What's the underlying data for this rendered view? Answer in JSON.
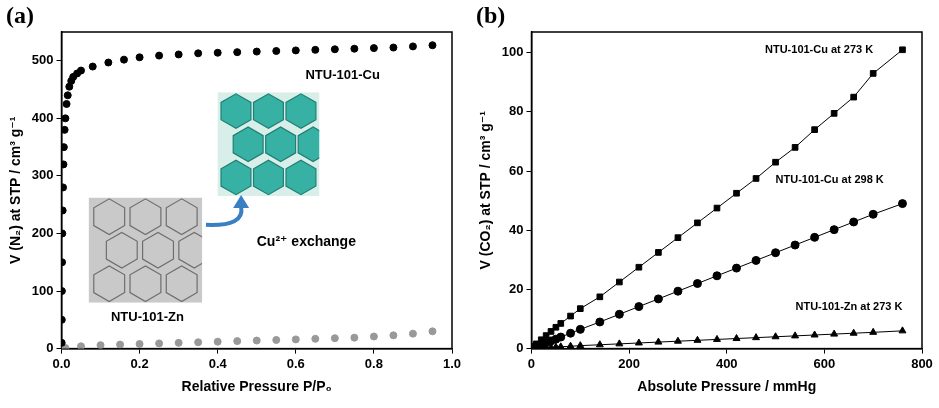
{
  "chart_data": [
    {
      "type": "scatter",
      "title": "(a)",
      "x_label": "Relative Pressure P/P₀",
      "y_label": "V (N₂) at STP / cm³ g⁻¹",
      "xlim": [
        0,
        1.0
      ],
      "xticks": [
        {
          "value": 0,
          "label": "0.0"
        },
        0.2,
        0.4,
        0.6,
        0.8,
        {
          "value": 1,
          "label": "1.0"
        }
      ],
      "ylim": [
        0,
        550
      ],
      "yticks": [
        0,
        100,
        200,
        300,
        400,
        500
      ],
      "grid": false,
      "annotations": [
        "Cu²⁺ exchange"
      ],
      "series": [
        {
          "name": "NTU-101-Cu",
          "color": "#000000",
          "marker": "circle",
          "line_style": "none",
          "x": [
            0.0005,
            0.0008,
            0.001,
            0.0015,
            0.002,
            0.003,
            0.004,
            0.005,
            0.006,
            0.008,
            0.01,
            0.013,
            0.016,
            0.02,
            0.025,
            0.03,
            0.04,
            0.05,
            0.08,
            0.12,
            0.16,
            0.2,
            0.25,
            0.3,
            0.35,
            0.4,
            0.45,
            0.5,
            0.55,
            0.6,
            0.65,
            0.7,
            0.75,
            0.8,
            0.85,
            0.9,
            0.95
          ],
          "values": [
            10,
            50,
            100,
            150,
            200,
            240,
            280,
            320,
            350,
            380,
            400,
            425,
            440,
            455,
            465,
            472,
            478,
            483,
            490,
            497,
            502,
            506,
            509,
            511,
            513,
            514,
            515,
            516,
            517,
            518,
            519,
            520,
            521,
            522,
            523,
            525,
            527
          ]
        },
        {
          "name": "NTU-101-Zn",
          "color": "#999999",
          "marker": "circle",
          "line_style": "none",
          "x": [
            0.01,
            0.05,
            0.1,
            0.15,
            0.2,
            0.25,
            0.3,
            0.35,
            0.4,
            0.45,
            0.5,
            0.55,
            0.6,
            0.65,
            0.7,
            0.75,
            0.8,
            0.85,
            0.9,
            0.95
          ],
          "values": [
            1,
            4,
            6,
            7,
            8,
            9,
            10,
            11,
            12,
            13,
            14,
            15,
            16,
            17,
            18,
            19,
            21,
            23,
            26,
            30
          ]
        }
      ]
    },
    {
      "type": "scatter",
      "title": "(b)",
      "x_label": "Absolute Pressure / mmHg",
      "y_label": "V (CO₂) at STP / cm³ g⁻¹",
      "xlim": [
        0,
        800
      ],
      "xticks": [
        0,
        200,
        400,
        600,
        800
      ],
      "ylim": [
        0,
        107
      ],
      "yticks": [
        0,
        20,
        40,
        60,
        80,
        100
      ],
      "grid": false,
      "series": [
        {
          "name": "NTU-101-Cu at 273 K",
          "color": "#000000",
          "marker": "square",
          "line_style": "solid",
          "x": [
            5,
            10,
            20,
            30,
            40,
            50,
            60,
            80,
            100,
            140,
            180,
            220,
            260,
            300,
            340,
            380,
            420,
            460,
            500,
            540,
            580,
            620,
            660,
            700,
            760
          ],
          "values": [
            0.8,
            1.6,
            3,
            4.4,
            5.8,
            7.2,
            8.5,
            11,
            13.5,
            17.5,
            22.5,
            27.5,
            32.5,
            37.5,
            42.5,
            47.5,
            52.5,
            57.5,
            63,
            68,
            74,
            79.5,
            85,
            93,
            101
          ]
        },
        {
          "name": "NTU-101-Cu at 298 K",
          "color": "#000000",
          "marker": "circle",
          "line_style": "solid",
          "x": [
            5,
            10,
            20,
            30,
            40,
            50,
            60,
            80,
            100,
            140,
            180,
            220,
            260,
            300,
            340,
            380,
            420,
            460,
            500,
            540,
            580,
            620,
            660,
            700,
            760
          ],
          "values": [
            0.3,
            0.7,
            1.3,
            2,
            2.6,
            3.2,
            3.9,
            5.2,
            6.5,
            9,
            11.6,
            14.2,
            16.8,
            19.4,
            22,
            24.6,
            27.2,
            29.8,
            32.4,
            35,
            37.6,
            40.2,
            42.8,
            45.4,
            49
          ]
        },
        {
          "name": "NTU-101-Zn at 273 K",
          "color": "#000000",
          "marker": "triangle",
          "line_style": "solid",
          "x": [
            5,
            10,
            20,
            30,
            40,
            50,
            60,
            80,
            100,
            140,
            180,
            220,
            260,
            300,
            340,
            380,
            420,
            460,
            500,
            540,
            580,
            620,
            660,
            700,
            760
          ],
          "values": [
            0.05,
            0.1,
            0.2,
            0.3,
            0.4,
            0.5,
            0.6,
            0.8,
            1.0,
            1.3,
            1.6,
            1.9,
            2.2,
            2.5,
            2.8,
            3.1,
            3.4,
            3.7,
            4.0,
            4.3,
            4.6,
            4.9,
            5.2,
            5.5,
            6.0
          ]
        }
      ]
    }
  ]
}
